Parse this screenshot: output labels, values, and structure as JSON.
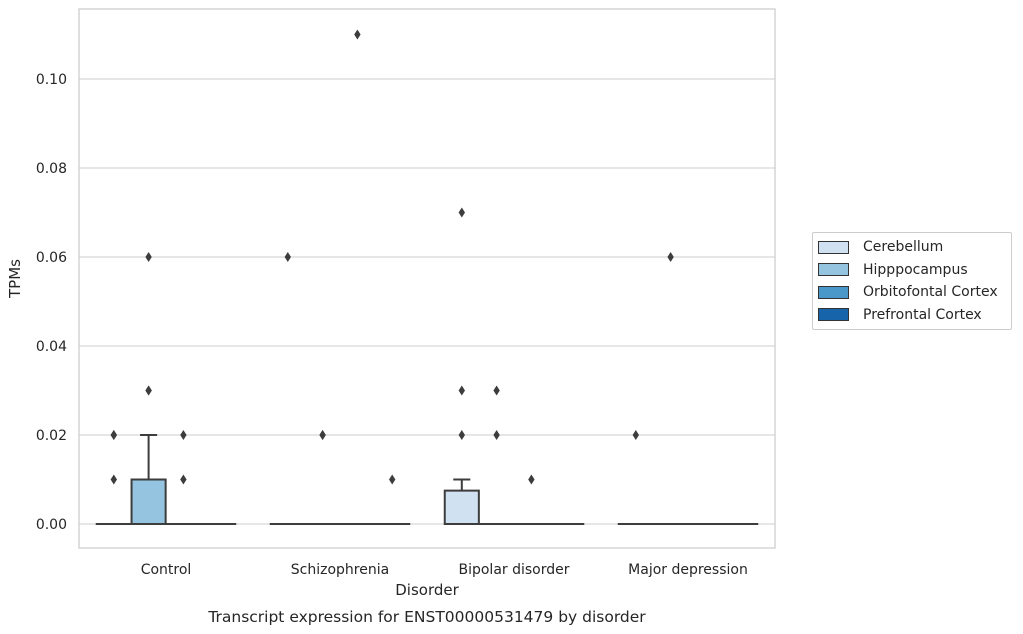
{
  "chart_data": {
    "type": "box",
    "title": "Transcript expression for ENST00000531479 by disorder",
    "xlabel": "Disorder",
    "ylabel": "TPMs",
    "ylim": [
      -0.0055,
      0.1155
    ],
    "yticks": [
      0.0,
      0.02,
      0.04,
      0.06,
      0.08,
      0.1
    ],
    "ytick_labels": [
      "0.00",
      "0.02",
      "0.04",
      "0.06",
      "0.08",
      "0.10"
    ],
    "categories": [
      "Control",
      "Schizophrenia",
      "Bipolar disorder",
      "Major depression"
    ],
    "grid": "horizontal",
    "legend_position": "right",
    "series": [
      {
        "name": "Cerebellum",
        "color": "#d0e1f2",
        "boxes": [
          {
            "q1": 0.0,
            "median": 0.0,
            "q3": 0.0,
            "whisker_low": 0.0,
            "whisker_high": 0.0,
            "outliers": [
              0.01,
              0.02,
              0.02
            ]
          },
          {
            "q1": 0.0,
            "median": 0.0,
            "q3": 0.0,
            "whisker_low": 0.0,
            "whisker_high": 0.0,
            "outliers": [
              0.06
            ]
          },
          {
            "q1": 0.0,
            "median": 0.0,
            "q3": 0.0075,
            "whisker_low": 0.0,
            "whisker_high": 0.01,
            "outliers": [
              0.02,
              0.03,
              0.07
            ]
          },
          {
            "q1": 0.0,
            "median": 0.0,
            "q3": 0.0,
            "whisker_low": 0.0,
            "whisker_high": 0.0,
            "outliers": [
              0.02
            ]
          }
        ]
      },
      {
        "name": "Hipppocampus",
        "color": "#94c4df",
        "boxes": [
          {
            "q1": 0.0,
            "median": 0.0,
            "q3": 0.01,
            "whisker_low": 0.0,
            "whisker_high": 0.02,
            "outliers": [
              0.03,
              0.03,
              0.06
            ]
          },
          {
            "q1": 0.0,
            "median": 0.0,
            "q3": 0.0,
            "whisker_low": 0.0,
            "whisker_high": 0.0,
            "outliers": [
              0.02,
              0.02
            ]
          },
          {
            "q1": 0.0,
            "median": 0.0,
            "q3": 0.0,
            "whisker_low": 0.0,
            "whisker_high": 0.0,
            "outliers": [
              0.02,
              0.03
            ]
          },
          {
            "q1": 0.0,
            "median": 0.0,
            "q3": 0.0,
            "whisker_low": 0.0,
            "whisker_high": 0.0,
            "outliers": [
              0.06
            ]
          }
        ]
      },
      {
        "name": "Orbitofontal Cortex",
        "color": "#4a98c9",
        "boxes": [
          {
            "q1": 0.0,
            "median": 0.0,
            "q3": 0.0,
            "whisker_low": 0.0,
            "whisker_high": 0.0,
            "outliers": [
              0.01,
              0.02
            ]
          },
          {
            "q1": 0.0,
            "median": 0.0,
            "q3": 0.0,
            "whisker_low": 0.0,
            "whisker_high": 0.0,
            "outliers": [
              0.11
            ]
          },
          {
            "q1": 0.0,
            "median": 0.0,
            "q3": 0.0,
            "whisker_low": 0.0,
            "whisker_high": 0.0,
            "outliers": [
              0.01
            ]
          },
          {
            "q1": 0.0,
            "median": 0.0,
            "q3": 0.0,
            "whisker_low": 0.0,
            "whisker_high": 0.0,
            "outliers": []
          }
        ]
      },
      {
        "name": "Prefrontal Cortex",
        "color": "#1764ab",
        "boxes": [
          {
            "q1": 0.0,
            "median": 0.0,
            "q3": 0.0,
            "whisker_low": 0.0,
            "whisker_high": 0.0,
            "outliers": []
          },
          {
            "q1": 0.0,
            "median": 0.0,
            "q3": 0.0,
            "whisker_low": 0.0,
            "whisker_high": 0.0,
            "outliers": [
              0.01
            ]
          },
          {
            "q1": 0.0,
            "median": 0.0,
            "q3": 0.0,
            "whisker_low": 0.0,
            "whisker_high": 0.0,
            "outliers": []
          },
          {
            "q1": 0.0,
            "median": 0.0,
            "q3": 0.0,
            "whisker_low": 0.0,
            "whisker_high": 0.0,
            "outliers": []
          }
        ]
      }
    ]
  }
}
